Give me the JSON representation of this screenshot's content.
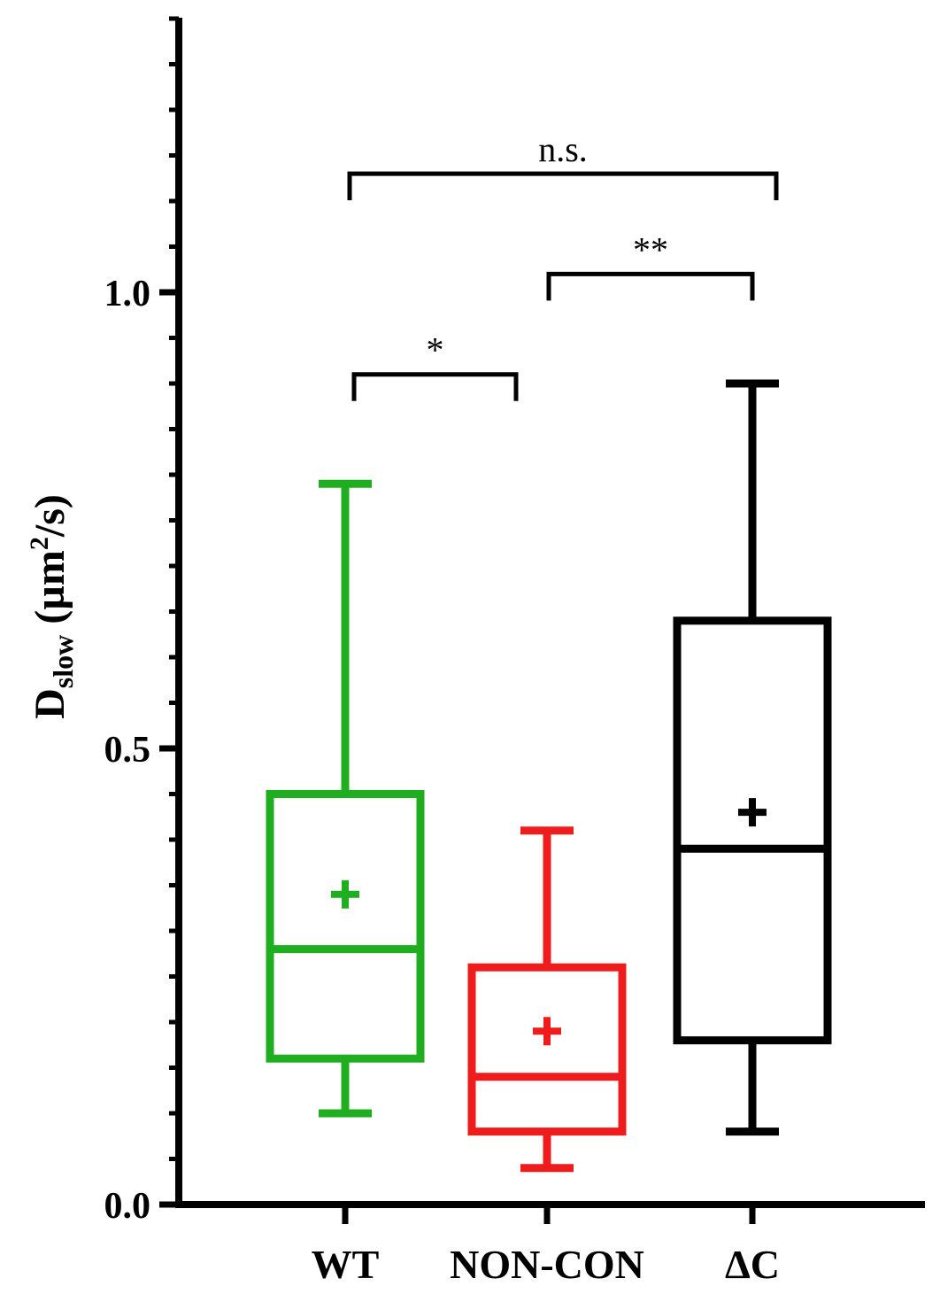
{
  "chart_data": {
    "type": "box",
    "title": "",
    "xlabel": "",
    "ylabel": {
      "main": "D",
      "subscript": "slow",
      "unit_prefix": " (µm",
      "superscript": "2",
      "unit_suffix": "/s)"
    },
    "ylim": [
      0,
      1.3
    ],
    "yticks": [
      0.0,
      0.5,
      1.0
    ],
    "ytick_labels": [
      "0.0",
      "0.5",
      "1.0"
    ],
    "y_minor_tick_step": 0.05,
    "grid": false,
    "legend": "none",
    "categories": [
      "WT",
      "NON-CON",
      "ΔC"
    ],
    "boxes": [
      {
        "name": "WT",
        "color": "#1fae1f",
        "whisker_low": 0.1,
        "q1": 0.16,
        "median": 0.28,
        "q3": 0.45,
        "whisker_high": 0.79,
        "mean": 0.34
      },
      {
        "name": "NON-CON",
        "color": "#ee1c1c",
        "whisker_low": 0.04,
        "q1": 0.08,
        "median": 0.14,
        "q3": 0.26,
        "whisker_high": 0.41,
        "mean": 0.19
      },
      {
        "name": "ΔC",
        "color": "#000000",
        "whisker_low": 0.08,
        "q1": 0.18,
        "median": 0.39,
        "q3": 0.64,
        "whisker_high": 0.9,
        "mean": 0.43
      }
    ],
    "significance": [
      {
        "from": "WT",
        "to": "NON-CON",
        "y": 0.91,
        "label": "*"
      },
      {
        "from": "NON-CON",
        "to": "ΔC",
        "y": 1.02,
        "label": "**"
      },
      {
        "from": "WT",
        "to": "ΔC",
        "y": 1.13,
        "label": "n.s."
      }
    ]
  }
}
